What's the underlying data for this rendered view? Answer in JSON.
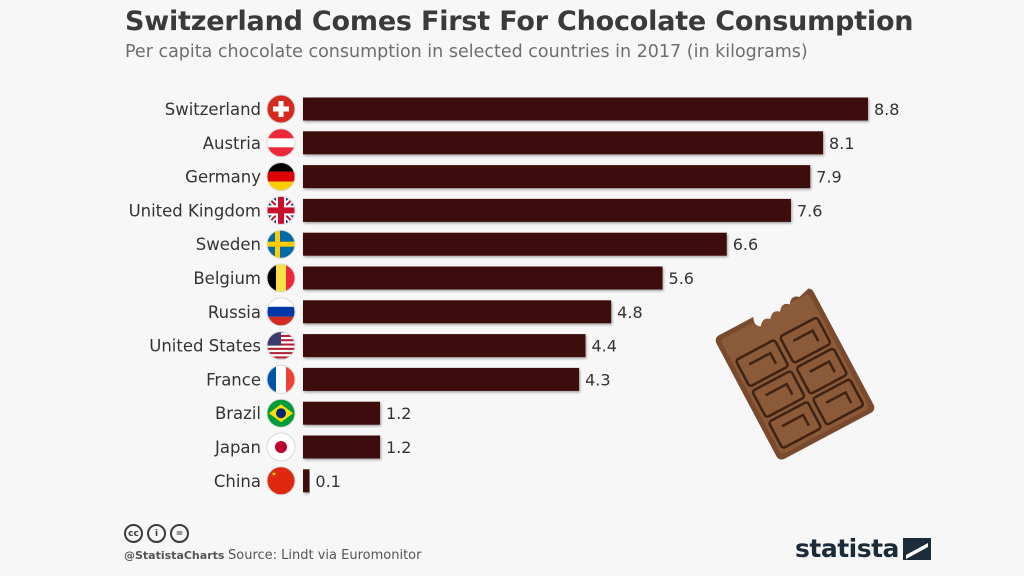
{
  "header": {
    "title": "Switzerland Comes First For Chocolate Consumption",
    "subtitle": "Per capita chocolate consumption in selected countries in 2017 (in kilograms)"
  },
  "chart_data": {
    "type": "bar",
    "orientation": "horizontal",
    "title": "Switzerland Comes First For Chocolate Consumption",
    "subtitle": "Per capita chocolate consumption in selected countries in 2017 (in kilograms)",
    "categories": [
      "Switzerland",
      "Austria",
      "Germany",
      "United Kingdom",
      "Sweden",
      "Belgium",
      "Russia",
      "United States",
      "France",
      "Brazil",
      "Japan",
      "China"
    ],
    "values": [
      8.8,
      8.1,
      7.9,
      7.6,
      6.6,
      5.6,
      4.8,
      4.4,
      4.3,
      1.2,
      1.2,
      0.1
    ],
    "value_labels": [
      "8.8",
      "8.1",
      "7.9",
      "7.6",
      "6.6",
      "5.6",
      "4.8",
      "4.4",
      "4.3",
      "1.2",
      "1.2",
      "0.1"
    ],
    "xlim": [
      0,
      8.8
    ],
    "bar_color": "#3d0c0a",
    "grid": false,
    "flags": [
      "switzerland-flag-icon",
      "austria-flag-icon",
      "germany-flag-icon",
      "uk-flag-icon",
      "sweden-flag-icon",
      "belgium-flag-icon",
      "russia-flag-icon",
      "usa-flag-icon",
      "france-flag-icon",
      "brazil-flag-icon",
      "japan-flag-icon",
      "china-flag-icon"
    ]
  },
  "decoration": {
    "icon": "chocolate-bar-icon"
  },
  "footer": {
    "license_icons": [
      "cc-icon",
      "by-icon",
      "nd-icon"
    ],
    "license_glyphs": [
      "cc",
      "i",
      "="
    ],
    "handle": "@StatistaCharts",
    "source": "Source: Lindt via Euromonitor",
    "brand": "statista"
  }
}
